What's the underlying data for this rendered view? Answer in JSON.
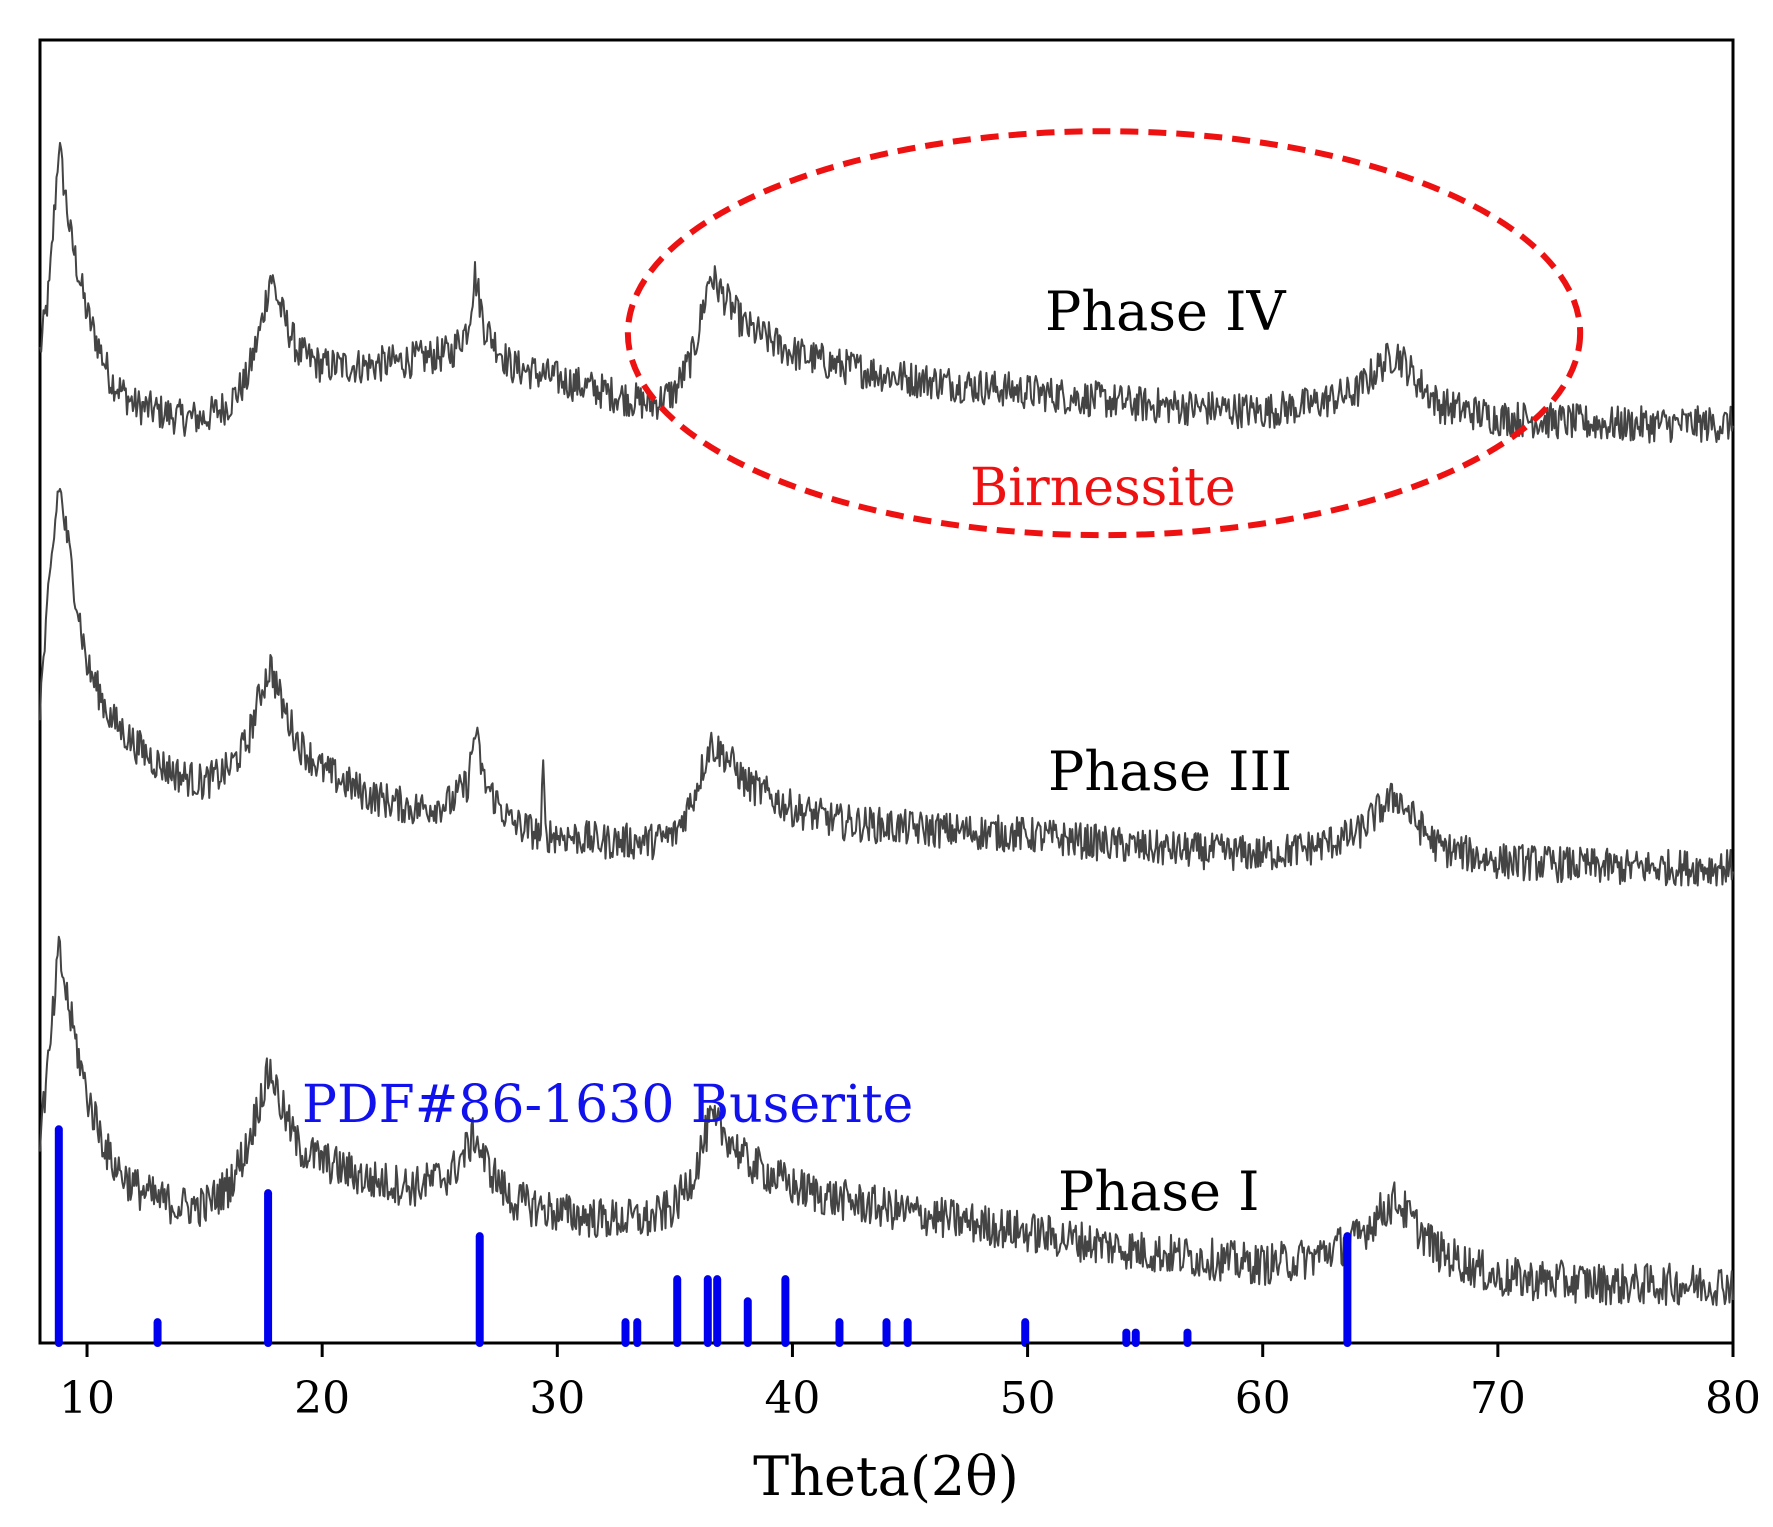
{
  "chart_data": {
    "type": "line",
    "title": "",
    "xlabel": "Theta(2θ)",
    "ylabel": "",
    "xlim": [
      8,
      80
    ],
    "ylim": [
      0,
      100
    ],
    "xticks": [
      10,
      20,
      30,
      40,
      50,
      60,
      70,
      80
    ],
    "grid": false,
    "colors": {
      "trace": "#444444",
      "reference": "#0000ee",
      "annotation_red": "#ee1111",
      "annotation_blue": "#1111ee",
      "frame": "#000000"
    },
    "series": [
      {
        "name": "Phase IV",
        "label": "Phase IV",
        "baseline": 70,
        "noise": 1.4,
        "points": [
          [
            8,
            76
          ],
          [
            8.4,
            81
          ],
          [
            8.8,
            92
          ],
          [
            9.3,
            85
          ],
          [
            10,
            79
          ],
          [
            11,
            74
          ],
          [
            12,
            72
          ],
          [
            13,
            71.5
          ],
          [
            14,
            71
          ],
          [
            15,
            71
          ],
          [
            16,
            72
          ],
          [
            16.8,
            74
          ],
          [
            17.4,
            78
          ],
          [
            17.8,
            82
          ],
          [
            18.3,
            79
          ],
          [
            19,
            76
          ],
          [
            20,
            75
          ],
          [
            22,
            75
          ],
          [
            24,
            75.5
          ],
          [
            25.5,
            76
          ],
          [
            26.2,
            78
          ],
          [
            26.5,
            82
          ],
          [
            26.9,
            78
          ],
          [
            28,
            75
          ],
          [
            30,
            74
          ],
          [
            32,
            73
          ],
          [
            34,
            72
          ],
          [
            35,
            73
          ],
          [
            35.8,
            76
          ],
          [
            36.5,
            82
          ],
          [
            37.2,
            80
          ],
          [
            38,
            78
          ],
          [
            40,
            76
          ],
          [
            42,
            75
          ],
          [
            45,
            74
          ],
          [
            50,
            73
          ],
          [
            55,
            72
          ],
          [
            60,
            71.5
          ],
          [
            62,
            72
          ],
          [
            64,
            73
          ],
          [
            65,
            75
          ],
          [
            65.7,
            76
          ],
          [
            66.5,
            74
          ],
          [
            67.5,
            72
          ],
          [
            70,
            71
          ],
          [
            75,
            70.5
          ],
          [
            80,
            70.5
          ]
        ]
      },
      {
        "name": "Phase III",
        "label": "Phase III",
        "baseline": 37,
        "noise": 1.4,
        "points": [
          [
            8,
            49
          ],
          [
            8.4,
            58
          ],
          [
            8.8,
            66
          ],
          [
            9.3,
            60
          ],
          [
            10,
            52
          ],
          [
            11,
            48
          ],
          [
            12,
            46
          ],
          [
            13,
            44.5
          ],
          [
            14,
            43.5
          ],
          [
            15,
            43
          ],
          [
            16,
            44
          ],
          [
            16.8,
            46
          ],
          [
            17.4,
            50
          ],
          [
            17.8,
            52
          ],
          [
            18.3,
            49
          ],
          [
            19,
            46
          ],
          [
            20,
            44
          ],
          [
            22,
            42
          ],
          [
            24,
            41
          ],
          [
            25.5,
            41.5
          ],
          [
            26.2,
            43
          ],
          [
            26.5,
            47
          ],
          [
            26.9,
            43
          ],
          [
            28,
            40
          ],
          [
            29.3,
            39
          ],
          [
            29.4,
            44
          ],
          [
            29.5,
            39
          ],
          [
            30,
            39
          ],
          [
            32,
            38.5
          ],
          [
            34,
            38.5
          ],
          [
            35,
            39
          ],
          [
            35.8,
            42
          ],
          [
            36.5,
            46
          ],
          [
            37.2,
            45
          ],
          [
            38,
            43
          ],
          [
            40,
            41
          ],
          [
            42,
            40
          ],
          [
            45,
            39.5
          ],
          [
            50,
            39
          ],
          [
            55,
            38
          ],
          [
            60,
            37.5
          ],
          [
            62,
            38
          ],
          [
            64,
            39
          ],
          [
            65,
            41
          ],
          [
            65.7,
            42
          ],
          [
            66.5,
            40
          ],
          [
            67.5,
            38
          ],
          [
            70,
            37
          ],
          [
            75,
            36.5
          ],
          [
            80,
            36.5
          ]
        ]
      },
      {
        "name": "Phase I",
        "label": "Phase I",
        "baseline": 4,
        "noise": 1.6,
        "points": [
          [
            8,
            16
          ],
          [
            8.4,
            22
          ],
          [
            8.8,
            30
          ],
          [
            9.3,
            25
          ],
          [
            10,
            19
          ],
          [
            11,
            14
          ],
          [
            12,
            12
          ],
          [
            13,
            11
          ],
          [
            14,
            10.5
          ],
          [
            15,
            10.5
          ],
          [
            16,
            12
          ],
          [
            16.8,
            15
          ],
          [
            17.4,
            19
          ],
          [
            17.8,
            21
          ],
          [
            18.3,
            18
          ],
          [
            19,
            15
          ],
          [
            20,
            14
          ],
          [
            22,
            12.5
          ],
          [
            24,
            12
          ],
          [
            25.5,
            13
          ],
          [
            26.2,
            15
          ],
          [
            26.5,
            16
          ],
          [
            26.9,
            14
          ],
          [
            28,
            11
          ],
          [
            30,
            10
          ],
          [
            32,
            9.5
          ],
          [
            34,
            9.5
          ],
          [
            35,
            10.5
          ],
          [
            35.8,
            13
          ],
          [
            36.5,
            17
          ],
          [
            37.2,
            16
          ],
          [
            38,
            14
          ],
          [
            40,
            12
          ],
          [
            42,
            11
          ],
          [
            45,
            10
          ],
          [
            50,
            8.5
          ],
          [
            55,
            7
          ],
          [
            60,
            6
          ],
          [
            62,
            6.5
          ],
          [
            64,
            8
          ],
          [
            65,
            10
          ],
          [
            65.7,
            11
          ],
          [
            66.5,
            9
          ],
          [
            67.5,
            7
          ],
          [
            70,
            5
          ],
          [
            75,
            4.5
          ],
          [
            80,
            4.5
          ]
        ]
      }
    ],
    "reference_pattern": {
      "name": "PDF#86-1630 Buserite",
      "label": "PDF#86-1630 Buserite",
      "peaks": [
        {
          "x": 8.8,
          "intensity": 16.4
        },
        {
          "x": 13.0,
          "intensity": 1.6
        },
        {
          "x": 17.7,
          "intensity": 11.5
        },
        {
          "x": 26.7,
          "intensity": 8.2
        },
        {
          "x": 32.9,
          "intensity": 1.6
        },
        {
          "x": 33.4,
          "intensity": 1.6
        },
        {
          "x": 35.1,
          "intensity": 4.9
        },
        {
          "x": 36.4,
          "intensity": 4.9
        },
        {
          "x": 36.8,
          "intensity": 4.9
        },
        {
          "x": 38.1,
          "intensity": 3.2
        },
        {
          "x": 39.7,
          "intensity": 4.9
        },
        {
          "x": 42.0,
          "intensity": 1.6
        },
        {
          "x": 44.0,
          "intensity": 1.6
        },
        {
          "x": 44.9,
          "intensity": 1.6
        },
        {
          "x": 49.9,
          "intensity": 1.6
        },
        {
          "x": 54.2,
          "intensity": 0.8
        },
        {
          "x": 54.6,
          "intensity": 0.8
        },
        {
          "x": 56.8,
          "intensity": 0.8
        },
        {
          "x": 63.6,
          "intensity": 8.2
        }
      ]
    },
    "annotations": [
      {
        "text": "Birnessite",
        "color": "red",
        "region": "ellipse",
        "x_range": [
          33,
          73.5
        ],
        "y_range": [
          62,
          93
        ]
      }
    ]
  }
}
